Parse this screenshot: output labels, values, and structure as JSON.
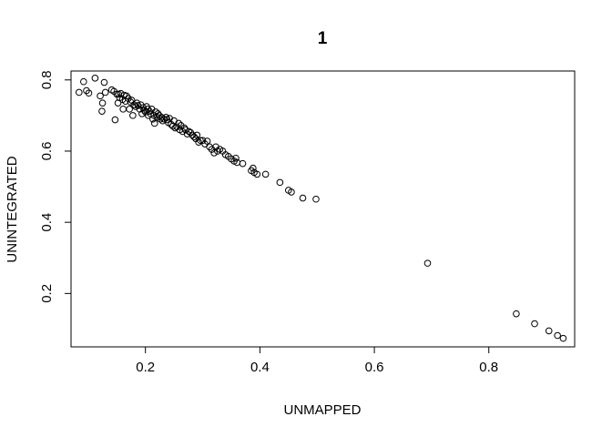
{
  "chart_data": {
    "type": "scatter",
    "title": "1",
    "xlabel": "UNMAPPED",
    "ylabel": "UNINTEGRATED",
    "xlim": [
      0.07,
      0.95
    ],
    "ylim": [
      0.05,
      0.825
    ],
    "xticks": [
      0.2,
      0.4,
      0.6,
      0.8
    ],
    "yticks": [
      0.2,
      0.4,
      0.6,
      0.8
    ],
    "xtick_labels": [
      "0.2",
      "0.4",
      "0.6",
      "0.8"
    ],
    "ytick_labels": [
      "0.2",
      "0.4",
      "0.6",
      "0.8"
    ],
    "grid": false,
    "marker": "open-circle",
    "points": [
      [
        0.084,
        0.765
      ],
      [
        0.092,
        0.795
      ],
      [
        0.097,
        0.77
      ],
      [
        0.101,
        0.763
      ],
      [
        0.112,
        0.805
      ],
      [
        0.121,
        0.755
      ],
      [
        0.124,
        0.712
      ],
      [
        0.125,
        0.735
      ],
      [
        0.128,
        0.793
      ],
      [
        0.13,
        0.765
      ],
      [
        0.141,
        0.772
      ],
      [
        0.145,
        0.768
      ],
      [
        0.147,
        0.688
      ],
      [
        0.15,
        0.76
      ],
      [
        0.152,
        0.735
      ],
      [
        0.153,
        0.76
      ],
      [
        0.155,
        0.75
      ],
      [
        0.157,
        0.762
      ],
      [
        0.16,
        0.745
      ],
      [
        0.161,
        0.718
      ],
      [
        0.163,
        0.757
      ],
      [
        0.165,
        0.74
      ],
      [
        0.167,
        0.755
      ],
      [
        0.17,
        0.748
      ],
      [
        0.172,
        0.718
      ],
      [
        0.174,
        0.738
      ],
      [
        0.176,
        0.743
      ],
      [
        0.178,
        0.7
      ],
      [
        0.18,
        0.73
      ],
      [
        0.183,
        0.725
      ],
      [
        0.185,
        0.735
      ],
      [
        0.187,
        0.728
      ],
      [
        0.19,
        0.718
      ],
      [
        0.192,
        0.73
      ],
      [
        0.194,
        0.705
      ],
      [
        0.196,
        0.722
      ],
      [
        0.198,
        0.715
      ],
      [
        0.2,
        0.71
      ],
      [
        0.202,
        0.725
      ],
      [
        0.204,
        0.718
      ],
      [
        0.205,
        0.7
      ],
      [
        0.207,
        0.712
      ],
      [
        0.209,
        0.705
      ],
      [
        0.211,
        0.718
      ],
      [
        0.213,
        0.69
      ],
      [
        0.215,
        0.7
      ],
      [
        0.216,
        0.678
      ],
      [
        0.218,
        0.71
      ],
      [
        0.22,
        0.695
      ],
      [
        0.222,
        0.705
      ],
      [
        0.224,
        0.7
      ],
      [
        0.226,
        0.69
      ],
      [
        0.228,
        0.695
      ],
      [
        0.23,
        0.685
      ],
      [
        0.233,
        0.69
      ],
      [
        0.236,
        0.695
      ],
      [
        0.238,
        0.688
      ],
      [
        0.24,
        0.68
      ],
      [
        0.242,
        0.692
      ],
      [
        0.245,
        0.675
      ],
      [
        0.248,
        0.67
      ],
      [
        0.25,
        0.685
      ],
      [
        0.252,
        0.665
      ],
      [
        0.255,
        0.668
      ],
      [
        0.258,
        0.678
      ],
      [
        0.26,
        0.66
      ],
      [
        0.262,
        0.672
      ],
      [
        0.265,
        0.655
      ],
      [
        0.268,
        0.665
      ],
      [
        0.27,
        0.66
      ],
      [
        0.273,
        0.648
      ],
      [
        0.276,
        0.655
      ],
      [
        0.279,
        0.652
      ],
      [
        0.282,
        0.645
      ],
      [
        0.285,
        0.64
      ],
      [
        0.288,
        0.635
      ],
      [
        0.29,
        0.645
      ],
      [
        0.293,
        0.625
      ],
      [
        0.296,
        0.63
      ],
      [
        0.3,
        0.63
      ],
      [
        0.304,
        0.62
      ],
      [
        0.308,
        0.628
      ],
      [
        0.312,
        0.612
      ],
      [
        0.316,
        0.605
      ],
      [
        0.32,
        0.595
      ],
      [
        0.323,
        0.612
      ],
      [
        0.326,
        0.6
      ],
      [
        0.33,
        0.605
      ],
      [
        0.335,
        0.6
      ],
      [
        0.34,
        0.59
      ],
      [
        0.345,
        0.585
      ],
      [
        0.35,
        0.578
      ],
      [
        0.355,
        0.572
      ],
      [
        0.358,
        0.58
      ],
      [
        0.36,
        0.568
      ],
      [
        0.37,
        0.565
      ],
      [
        0.385,
        0.545
      ],
      [
        0.388,
        0.552
      ],
      [
        0.39,
        0.54
      ],
      [
        0.395,
        0.535
      ],
      [
        0.41,
        0.535
      ],
      [
        0.435,
        0.512
      ],
      [
        0.45,
        0.49
      ],
      [
        0.455,
        0.485
      ],
      [
        0.475,
        0.468
      ],
      [
        0.498,
        0.465
      ],
      [
        0.693,
        0.285
      ],
      [
        0.848,
        0.143
      ],
      [
        0.88,
        0.115
      ],
      [
        0.905,
        0.095
      ],
      [
        0.92,
        0.082
      ],
      [
        0.93,
        0.074
      ]
    ]
  }
}
